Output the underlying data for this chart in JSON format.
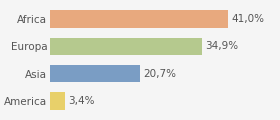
{
  "categories": [
    "America",
    "Asia",
    "Europa",
    "Africa"
  ],
  "values": [
    3.4,
    20.7,
    34.9,
    41.0
  ],
  "labels": [
    "3,4%",
    "20,7%",
    "34,9%",
    "41,0%"
  ],
  "bar_colors": [
    "#e8d06a",
    "#7a9dc4",
    "#b5c98e",
    "#e8a97e"
  ],
  "background_color": "#f5f5f5",
  "xlim": [
    0,
    52
  ],
  "label_fontsize": 7.5,
  "tick_fontsize": 7.5
}
